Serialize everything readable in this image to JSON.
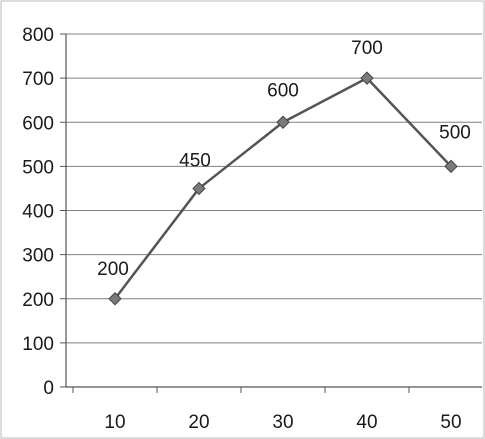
{
  "chart_data": {
    "type": "line",
    "title": "",
    "xlabel": "",
    "ylabel": "",
    "x": [
      10,
      20,
      30,
      40,
      50
    ],
    "series": [
      {
        "values": [
          200,
          450,
          600,
          700,
          500
        ],
        "data_labels": [
          "200",
          "450",
          "600",
          "700",
          "500"
        ]
      }
    ],
    "x_tick_labels": [
      "10",
      "20",
      "30",
      "40",
      "50"
    ],
    "y_tick_labels": [
      "0",
      "100",
      "200",
      "300",
      "400",
      "500",
      "600",
      "700",
      "800"
    ],
    "ylim": [
      0,
      800
    ],
    "grid": true,
    "legend": "none",
    "line_color": "#555555",
    "marker": "diamond",
    "marker_color": "#7a7a7a"
  }
}
